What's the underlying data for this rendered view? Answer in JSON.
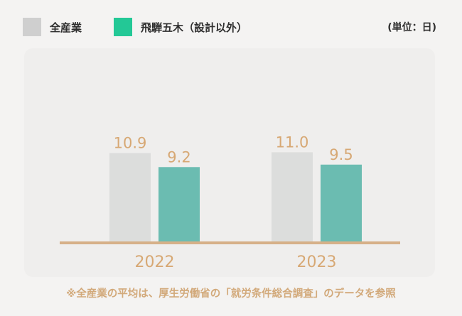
{
  "legend": {
    "items": [
      {
        "label": "全産業",
        "color": "#cfcfcf"
      },
      {
        "label": "飛騨五木（設計以外）",
        "color": "#23c896"
      }
    ]
  },
  "unit": "(単位：日)",
  "footnote": "※全産業の平均は、厚生労働省の「就労条件総合調査」のデータを参照",
  "colors": {
    "bar_all": "#dcdddc",
    "bar_hida": "#6bbcb1",
    "baseline": "#d6b088",
    "label": "#d7a874",
    "panel": "#efeeed"
  },
  "chart_data": {
    "type": "bar",
    "categories": [
      "2022",
      "2023"
    ],
    "series": [
      {
        "name": "全産業",
        "values": [
          10.9,
          11.0
        ]
      },
      {
        "name": "飛騨五木（設計以外）",
        "values": [
          9.2,
          9.5
        ]
      }
    ],
    "value_labels": [
      [
        "10.9",
        "11.0"
      ],
      [
        "9.2",
        "9.5"
      ]
    ],
    "ylim": [
      0,
      11
    ],
    "grid": false,
    "legend_position": "top-left"
  }
}
